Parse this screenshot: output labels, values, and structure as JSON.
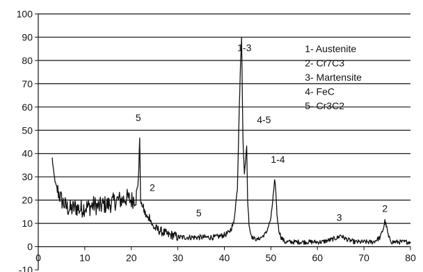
{
  "chart_data": {
    "type": "line",
    "title": "",
    "xlabel": "",
    "ylabel": "",
    "xlim": [
      0,
      80
    ],
    "ylim": [
      -10,
      100
    ],
    "x_ticks": [
      0,
      10,
      20,
      30,
      40,
      50,
      60,
      70,
      80
    ],
    "y_ticks": [
      -10,
      0,
      10,
      20,
      30,
      40,
      50,
      60,
      70,
      80,
      90,
      100
    ],
    "grid": "horizontal",
    "line_color": "#111111",
    "series": [
      {
        "x": [
          3.0,
          3.3,
          3.7,
          4.2,
          5.0,
          6.0,
          7.0,
          8.0,
          9.0,
          10.0,
          11.0,
          12.0,
          13.0,
          14.0,
          15.0,
          16.0,
          17.0,
          18.0,
          19.0,
          20.0,
          21.0,
          21.3,
          21.6,
          21.8,
          22.0,
          22.5,
          23.0,
          23.5,
          24.0,
          24.5,
          25.0,
          26.0,
          27.0,
          28.0,
          29.0,
          30.0,
          32.0,
          34.0,
          36.0,
          38.0,
          40.0,
          41.0,
          42.0,
          42.8,
          43.2,
          43.5,
          43.7,
          44.0,
          44.3,
          44.6,
          44.8,
          45.0,
          45.3,
          45.6,
          46.0,
          47.0,
          48.0,
          49.0,
          50.0,
          50.5,
          50.8,
          51.0,
          51.3,
          51.7,
          52.2,
          53.0,
          55.0,
          58.0,
          61.0,
          63.0,
          64.5,
          65.0,
          65.5,
          66.5,
          68.0,
          70.0,
          72.0,
          73.5,
          74.2,
          74.5,
          74.8,
          75.3,
          76.0,
          78.0,
          80.0
        ],
        "y": [
          38,
          32,
          27,
          24,
          20,
          17,
          16,
          17,
          16,
          17,
          17,
          18,
          17,
          18,
          18,
          19,
          20,
          20,
          21,
          20,
          21,
          24,
          33,
          47,
          19,
          17,
          14,
          12,
          13,
          9,
          8,
          7,
          6,
          5,
          5,
          4,
          4,
          4,
          4,
          4,
          5,
          6,
          10,
          25,
          60,
          80,
          90,
          45,
          32,
          38,
          43,
          20,
          10,
          6,
          4,
          3,
          4,
          6,
          12,
          22,
          28,
          26,
          14,
          7,
          4,
          2,
          2,
          2,
          2,
          3,
          4,
          5,
          4,
          3,
          2,
          2,
          2,
          4,
          8,
          11,
          9,
          4,
          2,
          2,
          2
        ]
      }
    ],
    "peak_labels": [
      {
        "text": "5",
        "x": 21.5,
        "y": 54
      },
      {
        "text": "2",
        "x": 24.5,
        "y": 24
      },
      {
        "text": "5",
        "x": 34.5,
        "y": 13
      },
      {
        "text": "1-3",
        "x": 44.3,
        "y": 84
      },
      {
        "text": "4-5",
        "x": 48.5,
        "y": 53
      },
      {
        "text": "1-4",
        "x": 51.5,
        "y": 36
      },
      {
        "text": "3",
        "x": 64.7,
        "y": 11
      },
      {
        "text": "2",
        "x": 74.5,
        "y": 15
      }
    ],
    "legend": {
      "placement": "top-right",
      "entries": [
        "1- Austenite",
        "2- Cr7C3",
        "3- Martensite",
        "4- FeC",
        "5- Cr3C2"
      ]
    }
  }
}
